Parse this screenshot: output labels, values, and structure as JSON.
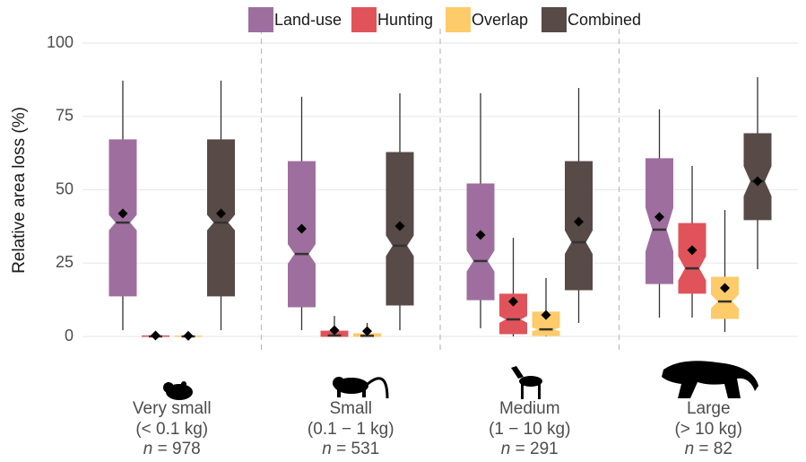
{
  "chart_data": {
    "type": "boxplot",
    "y_label": "Relative area loss (%)",
    "ylim": [
      0,
      100
    ],
    "yticks": [
      0,
      25,
      50,
      75,
      100
    ],
    "grid": true,
    "legend": "top",
    "categories": [
      "Very small",
      "Small",
      "Medium",
      "Large"
    ],
    "category_ranges": [
      "(< 0.1 kg)",
      "(0.1 − 1 kg)",
      "(1 − 10 kg)",
      "(> 10 kg)"
    ],
    "n_symbol": "n",
    "n_separator": " = ",
    "n": [
      978,
      531,
      291,
      82
    ],
    "series": [
      {
        "name": "Land-use",
        "color": "#9e6f9e",
        "whisker_low": [
          2.1,
          2.1,
          2.8,
          6.4
        ],
        "q1": [
          13.8,
          10.1,
          12.5,
          18
        ],
        "median": [
          38.8,
          28.1,
          25.7,
          36.4
        ],
        "q3": [
          67,
          59.6,
          52,
          60.6
        ],
        "whisker_high": [
          87.2,
          81.7,
          82.9,
          77.4
        ],
        "mean": [
          41.9,
          36.7,
          34.6,
          40.7
        ]
      },
      {
        "name": "Hunting",
        "color": "#e0535b",
        "whisker_low": [
          0,
          0,
          0,
          6.4
        ],
        "q1": [
          0,
          0,
          0.9,
          14.7
        ],
        "median": [
          0,
          0.3,
          5.8,
          23.2
        ],
        "q3": [
          0.2,
          1.8,
          14.4,
          38.5
        ],
        "whisker_high": [
          0.3,
          7,
          33.6,
          58.1
        ],
        "mean": [
          0.3,
          2.1,
          11.9,
          29.4
        ]
      },
      {
        "name": "Overlap",
        "color": "#fdcb6a",
        "whisker_low": [
          0,
          0,
          0,
          1.5
        ],
        "q1": [
          0,
          0,
          0.3,
          6.1
        ],
        "median": [
          0,
          0.2,
          2.4,
          11.9
        ],
        "q3": [
          0.1,
          0.9,
          8.3,
          20.2
        ],
        "whisker_high": [
          0.2,
          4.6,
          19.9,
          43.1
        ],
        "mean": [
          0.2,
          1.8,
          7.3,
          16.5
        ]
      },
      {
        "name": "Combined",
        "color": "#574a47",
        "whisker_low": [
          2.1,
          2.1,
          4.6,
          22.9
        ],
        "q1": [
          13.8,
          10.7,
          15.9,
          39.8
        ],
        "median": [
          38.8,
          30.9,
          32.1,
          52.9
        ],
        "q3": [
          67,
          62.7,
          59.6,
          69.1
        ],
        "whisker_high": [
          87.2,
          82.9,
          84.7,
          88.4
        ],
        "mean": [
          41.9,
          37.6,
          39.1,
          52.9
        ]
      }
    ]
  }
}
